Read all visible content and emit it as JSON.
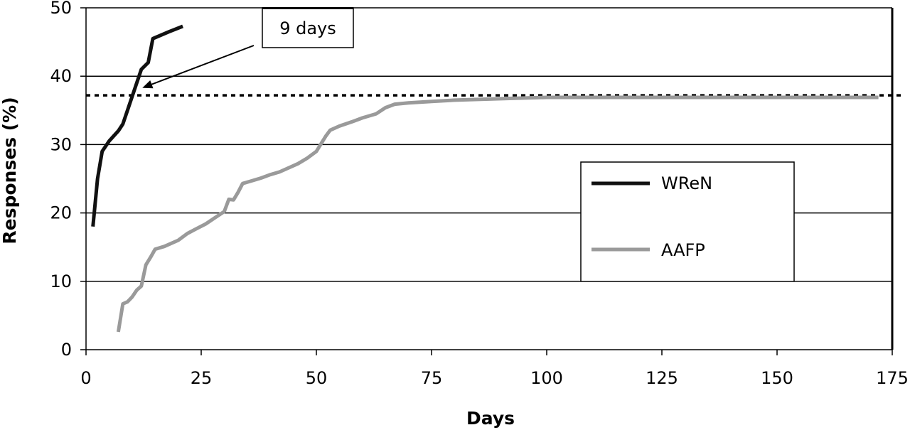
{
  "chart_data": {
    "type": "line",
    "title": "",
    "xlabel": "Days",
    "ylabel": "Responses (%)",
    "xlim": [
      0,
      175
    ],
    "ylim": [
      0,
      50
    ],
    "x_ticks": [
      "0",
      "25",
      "50",
      "75",
      "100",
      "125",
      "150",
      "175"
    ],
    "y_ticks": [
      "0",
      "10",
      "20",
      "30",
      "40",
      "50"
    ],
    "grid": "horizontal",
    "legend_position": "center-right",
    "reference_line": {
      "y": 37.2,
      "style": "dotted"
    },
    "annotation": {
      "text": "9 days",
      "points_to": {
        "x": 11,
        "y": 38.5
      }
    },
    "series": [
      {
        "name": "WReN",
        "color": "#111111",
        "points": [
          [
            1.5,
            18
          ],
          [
            2.5,
            25
          ],
          [
            3.5,
            29
          ],
          [
            5,
            30.5
          ],
          [
            7,
            32
          ],
          [
            8,
            33
          ],
          [
            9,
            35
          ],
          [
            10,
            37
          ],
          [
            11,
            39
          ],
          [
            12,
            41
          ],
          [
            13.5,
            42
          ],
          [
            14.5,
            45.5
          ],
          [
            18,
            46.5
          ],
          [
            21,
            47.3
          ]
        ]
      },
      {
        "name": "AAFP",
        "color": "#9a9a9a",
        "points": [
          [
            7,
            2.6
          ],
          [
            8,
            6.7
          ],
          [
            9,
            7
          ],
          [
            10,
            7.7
          ],
          [
            11,
            8.7
          ],
          [
            12,
            9.3
          ],
          [
            13,
            12.4
          ],
          [
            14,
            13.5
          ],
          [
            15,
            14.7
          ],
          [
            17,
            15.1
          ],
          [
            20,
            16
          ],
          [
            22,
            17
          ],
          [
            24,
            17.7
          ],
          [
            26,
            18.4
          ],
          [
            28,
            19.3
          ],
          [
            30,
            20.2
          ],
          [
            31,
            22
          ],
          [
            32,
            21.9
          ],
          [
            33,
            23
          ],
          [
            34,
            24.3
          ],
          [
            36,
            24.7
          ],
          [
            38,
            25.1
          ],
          [
            40,
            25.6
          ],
          [
            42,
            26
          ],
          [
            44,
            26.6
          ],
          [
            46,
            27.2
          ],
          [
            48,
            28
          ],
          [
            50,
            29
          ],
          [
            51,
            30.1
          ],
          [
            52,
            31.2
          ],
          [
            53,
            32.1
          ],
          [
            55,
            32.7
          ],
          [
            58,
            33.4
          ],
          [
            60,
            33.9
          ],
          [
            63,
            34.5
          ],
          [
            65,
            35.4
          ],
          [
            67,
            35.9
          ],
          [
            70,
            36.1
          ],
          [
            75,
            36.3
          ],
          [
            80,
            36.5
          ],
          [
            90,
            36.7
          ],
          [
            100,
            36.9
          ],
          [
            120,
            36.9
          ],
          [
            140,
            36.9
          ],
          [
            160,
            36.9
          ],
          [
            172,
            36.9
          ]
        ]
      }
    ]
  }
}
